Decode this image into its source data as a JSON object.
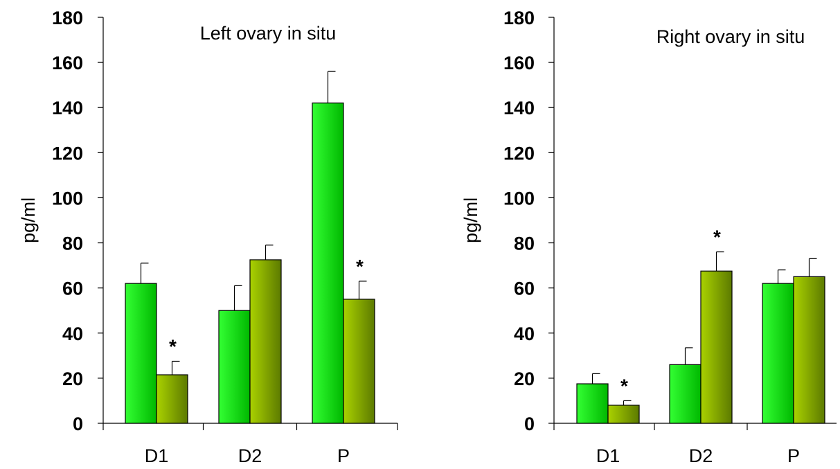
{
  "colors": {
    "series_a_light": "#33ff33",
    "series_a_dark": "#00b800",
    "series_b_light": "#aad200",
    "series_b_dark": "#5c7a00"
  },
  "chart_data": [
    {
      "type": "bar",
      "title": "Left ovary in situ",
      "ylabel": "pg/ml",
      "xlabel": "",
      "ylim": [
        0,
        180
      ],
      "yticks": [
        "0",
        "20",
        "40",
        "60",
        "80",
        "100",
        "120",
        "140",
        "160",
        "180"
      ],
      "categories": [
        "D1",
        "D2",
        "P"
      ],
      "grid": false,
      "series": [
        {
          "values": [
            62,
            50,
            142
          ],
          "errors": [
            9,
            11,
            14
          ]
        },
        {
          "values": [
            21.5,
            72.5,
            55
          ],
          "errors": [
            6,
            6.5,
            8
          ]
        }
      ],
      "annotations": [
        {
          "category": "D1",
          "series": 1,
          "text": "*"
        },
        {
          "category": "P",
          "series": 1,
          "text": "*"
        }
      ]
    },
    {
      "type": "bar",
      "title": "Right ovary in situ",
      "ylabel": "pg/ml",
      "xlabel": "",
      "ylim": [
        0,
        180
      ],
      "yticks": [
        "0",
        "20",
        "40",
        "60",
        "80",
        "100",
        "120",
        "140",
        "160",
        "180"
      ],
      "categories": [
        "D1",
        "D2",
        "P"
      ],
      "grid": false,
      "series": [
        {
          "values": [
            17.5,
            26,
            62
          ],
          "errors": [
            4.5,
            7.5,
            6
          ]
        },
        {
          "values": [
            8,
            67.5,
            65
          ],
          "errors": [
            2,
            8.5,
            8
          ]
        }
      ],
      "annotations": [
        {
          "category": "D1",
          "series": 1,
          "text": "*"
        },
        {
          "category": "D2",
          "series": 1,
          "text": "*"
        }
      ]
    }
  ]
}
